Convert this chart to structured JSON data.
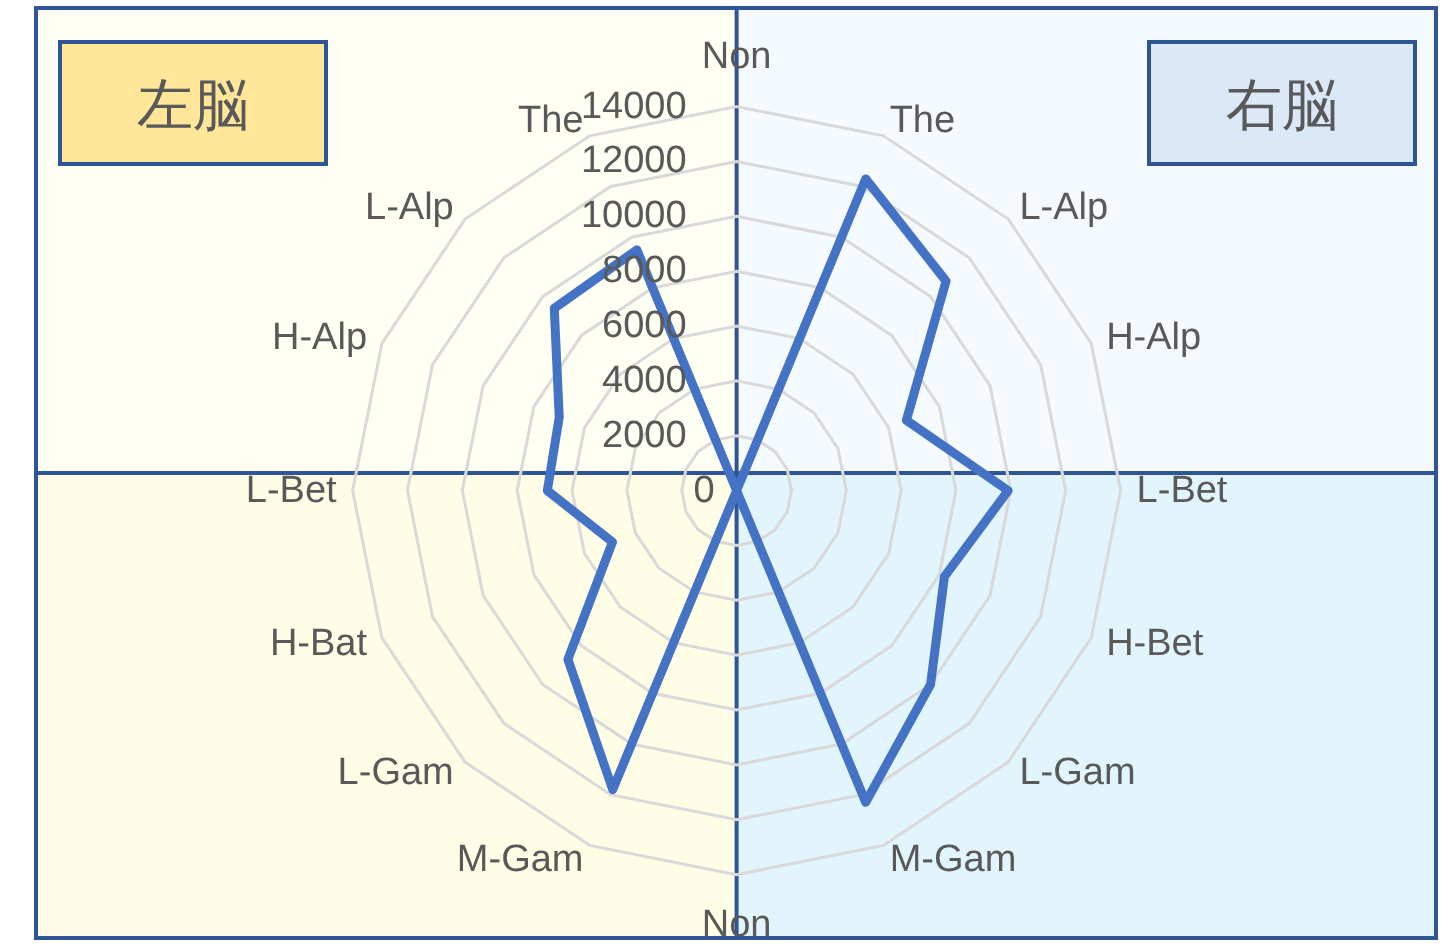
{
  "chart_data": {
    "type": "radar",
    "categories": [
      "Non",
      "The",
      "L-Alp",
      "H-Alp",
      "L-Bet",
      "H-Bet",
      "L-Gam",
      "M-Gam",
      "Non",
      "M-Gam",
      "L-Gam",
      "H-Bat",
      "L-Bet",
      "H-Alp",
      "L-Alp",
      "The"
    ],
    "series": [
      {
        "color": "#4472c4",
        "values": [
          0,
          12300,
          10800,
          6700,
          9900,
          8200,
          10000,
          12300,
          0,
          11800,
          8700,
          4900,
          6900,
          7000,
          9400,
          9500
        ]
      }
    ],
    "ylim": [
      0,
      14000
    ],
    "yticks": [
      0,
      2000,
      4000,
      6000,
      8000,
      10000,
      12000,
      14000
    ],
    "grid": true,
    "annotations": [
      "左脳",
      "右脳"
    ]
  }
}
